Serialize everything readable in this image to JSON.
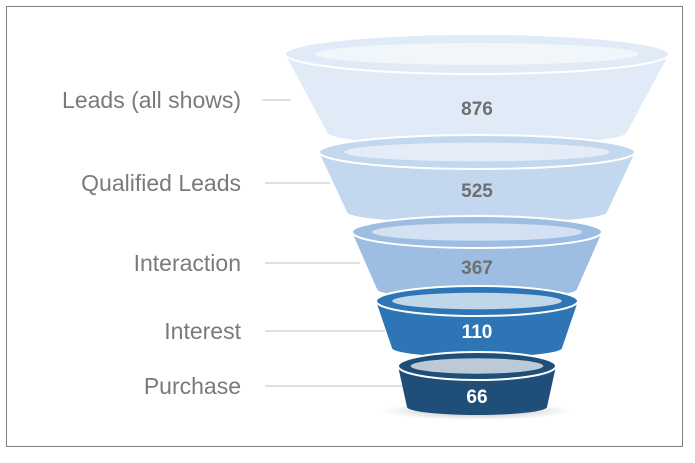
{
  "chart_data": {
    "type": "funnel",
    "categories": [
      "Leads (all shows)",
      "Qualified Leads",
      "Interaction",
      "Interest",
      "Purchase"
    ],
    "values": [
      876,
      525,
      367,
      110,
      66
    ],
    "colors": [
      "#e0ebf7",
      "#c3d7ee",
      "#9dbde3",
      "#2e75b6",
      "#1f4e79"
    ],
    "value_text_colors": [
      "#6f6f6f",
      "#6f6f6f",
      "#6f6f6f",
      "#ffffff",
      "#ffffff"
    ],
    "connector_color": "#bfbfbf"
  }
}
